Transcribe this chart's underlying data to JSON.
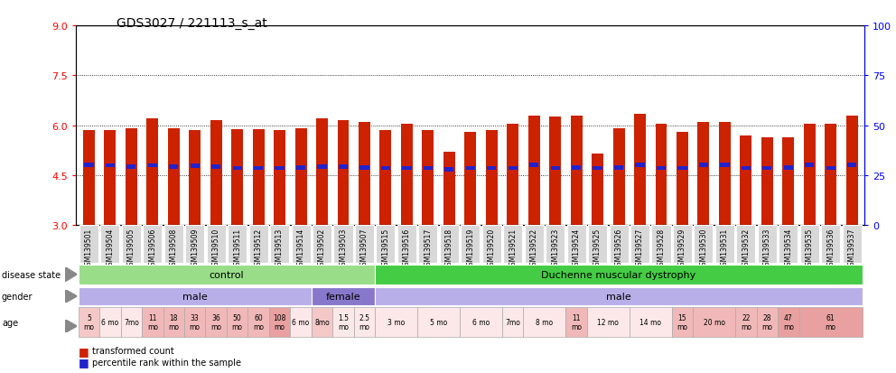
{
  "title": "GDS3027 / 221113_s_at",
  "samples": [
    "GSM139501",
    "GSM139504",
    "GSM139505",
    "GSM139506",
    "GSM139508",
    "GSM139509",
    "GSM139510",
    "GSM139511",
    "GSM139512",
    "GSM139513",
    "GSM139514",
    "GSM139502",
    "GSM139503",
    "GSM139507",
    "GSM139515",
    "GSM139516",
    "GSM139517",
    "GSM139518",
    "GSM139519",
    "GSM139520",
    "GSM139521",
    "GSM139522",
    "GSM139523",
    "GSM139524",
    "GSM139525",
    "GSM139526",
    "GSM139527",
    "GSM139528",
    "GSM139529",
    "GSM139530",
    "GSM139531",
    "GSM139532",
    "GSM139533",
    "GSM139534",
    "GSM139535",
    "GSM139536",
    "GSM139537"
  ],
  "bar_heights": [
    5.85,
    5.85,
    5.9,
    6.2,
    5.9,
    5.85,
    6.15,
    5.88,
    5.88,
    5.87,
    5.9,
    6.2,
    6.15,
    6.1,
    5.85,
    6.05,
    5.85,
    5.2,
    5.8,
    5.85,
    6.05,
    6.3,
    6.25,
    6.3,
    5.15,
    5.9,
    6.35,
    6.05,
    5.8,
    6.1,
    6.1,
    5.7,
    5.65,
    5.65,
    6.05,
    6.05,
    6.3
  ],
  "blue_heights": [
    4.82,
    4.8,
    4.75,
    4.8,
    4.75,
    4.78,
    4.76,
    4.72,
    4.72,
    4.72,
    4.73,
    4.75,
    4.75,
    4.73,
    4.72,
    4.72,
    4.72,
    4.68,
    4.72,
    4.72,
    4.72,
    4.82,
    4.72,
    4.73,
    4.72,
    4.73,
    4.82,
    4.72,
    4.72,
    4.82,
    4.82,
    4.72,
    4.72,
    4.73,
    4.82,
    4.72,
    4.82
  ],
  "ylim": [
    3,
    9
  ],
  "yticks_left": [
    3,
    4.5,
    6,
    7.5,
    9
  ],
  "yticks_right": [
    0,
    25,
    50,
    75,
    100
  ],
  "hlines": [
    4.5,
    6.0,
    7.5
  ],
  "bar_color": "#cc2200",
  "blue_color": "#2222cc",
  "bg_color": "#f0f0f0",
  "disease_groups": [
    {
      "start": 0,
      "end": 14,
      "color": "#99dd88",
      "label": "control"
    },
    {
      "start": 14,
      "end": 37,
      "color": "#44cc44",
      "label": "Duchenne muscular dystrophy"
    }
  ],
  "gender_groups": [
    {
      "start": 0,
      "end": 11,
      "label": "male",
      "color": "#b8aee8"
    },
    {
      "start": 11,
      "end": 14,
      "label": "female",
      "color": "#8878cc"
    },
    {
      "start": 14,
      "end": 37,
      "label": "male",
      "color": "#b8aee8"
    }
  ],
  "age_groups": [
    {
      "start": 0,
      "end": 1,
      "label": "5\nmo",
      "color": "#f5c8c8"
    },
    {
      "start": 1,
      "end": 2,
      "label": "6 mo",
      "color": "#fce8e8"
    },
    {
      "start": 2,
      "end": 3,
      "label": "7mo",
      "color": "#fce8e8"
    },
    {
      "start": 3,
      "end": 4,
      "label": "11\nmo",
      "color": "#f0b8b8"
    },
    {
      "start": 4,
      "end": 5,
      "label": "18\nmo",
      "color": "#f0b8b8"
    },
    {
      "start": 5,
      "end": 6,
      "label": "33\nmo",
      "color": "#f0b8b8"
    },
    {
      "start": 6,
      "end": 7,
      "label": "36\nmo",
      "color": "#f0b8b8"
    },
    {
      "start": 7,
      "end": 8,
      "label": "50\nmo",
      "color": "#f0b8b8"
    },
    {
      "start": 8,
      "end": 9,
      "label": "60\nmo",
      "color": "#f0b8b8"
    },
    {
      "start": 9,
      "end": 10,
      "label": "108\nmo",
      "color": "#e8a0a0"
    },
    {
      "start": 10,
      "end": 11,
      "label": "6 mo",
      "color": "#fce8e8"
    },
    {
      "start": 11,
      "end": 12,
      "label": "8mo",
      "color": "#f5c8c8"
    },
    {
      "start": 12,
      "end": 13,
      "label": "1.5\nmo",
      "color": "#fce8e8"
    },
    {
      "start": 13,
      "end": 14,
      "label": "2.5\nmo",
      "color": "#fce8e8"
    },
    {
      "start": 14,
      "end": 16,
      "label": "3 mo",
      "color": "#fce8e8"
    },
    {
      "start": 16,
      "end": 18,
      "label": "5 mo",
      "color": "#fce8e8"
    },
    {
      "start": 18,
      "end": 20,
      "label": "6 mo",
      "color": "#fce8e8"
    },
    {
      "start": 20,
      "end": 21,
      "label": "7mo",
      "color": "#fce8e8"
    },
    {
      "start": 21,
      "end": 23,
      "label": "8 mo",
      "color": "#fce8e8"
    },
    {
      "start": 23,
      "end": 24,
      "label": "11\nmo",
      "color": "#f0b8b8"
    },
    {
      "start": 24,
      "end": 26,
      "label": "12 mo",
      "color": "#fce8e8"
    },
    {
      "start": 26,
      "end": 28,
      "label": "14 mo",
      "color": "#fce8e8"
    },
    {
      "start": 28,
      "end": 29,
      "label": "15\nmo",
      "color": "#f0b8b8"
    },
    {
      "start": 29,
      "end": 31,
      "label": "20 mo",
      "color": "#f0b8b8"
    },
    {
      "start": 31,
      "end": 32,
      "label": "22\nmo",
      "color": "#f0b8b8"
    },
    {
      "start": 32,
      "end": 33,
      "label": "28\nmo",
      "color": "#f0b8b8"
    },
    {
      "start": 33,
      "end": 34,
      "label": "47\nmo",
      "color": "#e8a0a0"
    },
    {
      "start": 34,
      "end": 37,
      "label": "61\nmo",
      "color": "#e8a0a0"
    }
  ],
  "legend_items": [
    {
      "color": "#cc2200",
      "label": "transformed count"
    },
    {
      "color": "#2222cc",
      "label": "percentile rank within the sample"
    }
  ]
}
